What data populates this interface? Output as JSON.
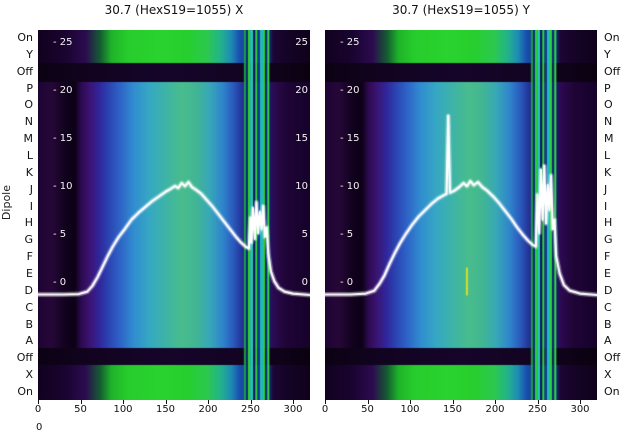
{
  "figure": {
    "background": "#ffffff",
    "left_axis_label": "Dipole",
    "row_labels": [
      "On",
      "Y",
      "Off",
      "P",
      "O",
      "N",
      "M",
      "L",
      "K",
      "J",
      "I",
      "H",
      "G",
      "F",
      "E",
      "D",
      "C",
      "B",
      "A",
      "Off",
      "X",
      "On"
    ],
    "bottom_corner_label": "0"
  },
  "panels": [
    {
      "title": "30.7 (HexS19=1055) X",
      "y_tick_labels": [
        "- 25",
        "- 20",
        "- 15",
        "- 10",
        "- 5",
        "- 0"
      ],
      "right_tick_labels": [
        "25",
        "20",
        "15",
        "10",
        "5",
        "0"
      ],
      "x_tick_labels": [
        "0",
        "50",
        "100",
        "150",
        "200",
        "250",
        "300"
      ]
    },
    {
      "title": "30.7 (HexS19=1055) Y",
      "y_tick_labels": [
        "- 25",
        "- 20",
        "- 15",
        "- 10",
        "- 5",
        "- 0"
      ],
      "right_tick_labels": [],
      "x_tick_labels": [
        "0",
        "50",
        "100",
        "150",
        "200",
        "250",
        "300"
      ]
    }
  ],
  "chart_data": [
    {
      "type": "heatmap",
      "title": "30.7 (HexS19=1055) X",
      "x_range": [
        0,
        320
      ],
      "x_ticks": [
        0,
        50,
        100,
        150,
        200,
        250,
        300
      ],
      "y_ticks": [
        25,
        20,
        15,
        10,
        5,
        0
      ],
      "row_labels": [
        "On",
        "Y",
        "Off",
        "P",
        "O",
        "N",
        "M",
        "L",
        "K",
        "J",
        "I",
        "H",
        "G",
        "F",
        "E",
        "D",
        "C",
        "B",
        "A",
        "Off",
        "X",
        "On"
      ],
      "overlay_line_name": "profile",
      "line": [
        [
          0,
          -1.2
        ],
        [
          30,
          -1.2
        ],
        [
          48,
          -1.15
        ],
        [
          58,
          -0.9
        ],
        [
          64,
          -0.3
        ],
        [
          70,
          0.6
        ],
        [
          76,
          1.7
        ],
        [
          82,
          2.8
        ],
        [
          88,
          3.8
        ],
        [
          95,
          4.8
        ],
        [
          102,
          5.6
        ],
        [
          110,
          6.6
        ],
        [
          118,
          7.3
        ],
        [
          126,
          7.9
        ],
        [
          134,
          8.5
        ],
        [
          142,
          9.0
        ],
        [
          150,
          9.5
        ],
        [
          156,
          9.8
        ],
        [
          161,
          10.1
        ],
        [
          165,
          9.9
        ],
        [
          169,
          10.4
        ],
        [
          173,
          10.1
        ],
        [
          177,
          10.5
        ],
        [
          181,
          10.0
        ],
        [
          186,
          9.7
        ],
        [
          192,
          9.3
        ],
        [
          198,
          8.7
        ],
        [
          205,
          8.0
        ],
        [
          212,
          7.2
        ],
        [
          219,
          6.4
        ],
        [
          226,
          5.6
        ],
        [
          233,
          4.8
        ],
        [
          239,
          4.2
        ],
        [
          244,
          3.8
        ],
        [
          248,
          3.6
        ],
        [
          250,
          6.8
        ],
        [
          251,
          4.2
        ],
        [
          253,
          7.8
        ],
        [
          255,
          4.6
        ],
        [
          257,
          8.4
        ],
        [
          259,
          5.2
        ],
        [
          261,
          7.4
        ],
        [
          263,
          5.6
        ],
        [
          265,
          8.0
        ],
        [
          267,
          4.8
        ],
        [
          269,
          5.8
        ],
        [
          271,
          3.0
        ],
        [
          274,
          1.2
        ],
        [
          278,
          0.2
        ],
        [
          283,
          -0.5
        ],
        [
          290,
          -0.9
        ],
        [
          300,
          -1.1
        ],
        [
          320,
          -1.25
        ]
      ]
    },
    {
      "type": "heatmap",
      "title": "30.7 (HexS19=1055) Y",
      "x_range": [
        0,
        320
      ],
      "x_ticks": [
        0,
        50,
        100,
        150,
        200,
        250,
        300
      ],
      "y_ticks": [
        25,
        20,
        15,
        10,
        5,
        0
      ],
      "row_labels": [
        "On",
        "Y",
        "Off",
        "P",
        "O",
        "N",
        "M",
        "L",
        "K",
        "J",
        "I",
        "H",
        "G",
        "F",
        "E",
        "D",
        "C",
        "B",
        "A",
        "Off",
        "X",
        "On"
      ],
      "overlay_line_name": "profile",
      "marker": {
        "x": 167,
        "v0": -1.3,
        "v1": 1.6,
        "color": "#d6de2a"
      },
      "line": [
        [
          0,
          -1.2
        ],
        [
          30,
          -1.2
        ],
        [
          48,
          -1.1
        ],
        [
          58,
          -0.8
        ],
        [
          64,
          -0.1
        ],
        [
          70,
          0.8
        ],
        [
          76,
          2.0
        ],
        [
          82,
          3.1
        ],
        [
          88,
          4.1
        ],
        [
          95,
          5.1
        ],
        [
          102,
          6.0
        ],
        [
          110,
          6.9
        ],
        [
          118,
          7.6
        ],
        [
          126,
          8.3
        ],
        [
          133,
          8.8
        ],
        [
          139,
          9.1
        ],
        [
          143,
          9.3
        ],
        [
          145,
          17.4
        ],
        [
          147,
          9.4
        ],
        [
          152,
          9.6
        ],
        [
          158,
          10.0
        ],
        [
          163,
          10.4
        ],
        [
          167,
          10.1
        ],
        [
          171,
          10.6
        ],
        [
          175,
          10.2
        ],
        [
          180,
          10.5
        ],
        [
          185,
          10.0
        ],
        [
          191,
          9.6
        ],
        [
          198,
          9.0
        ],
        [
          205,
          8.3
        ],
        [
          212,
          7.5
        ],
        [
          219,
          6.7
        ],
        [
          226,
          5.8
        ],
        [
          233,
          5.0
        ],
        [
          239,
          4.4
        ],
        [
          244,
          4.0
        ],
        [
          248,
          3.8
        ],
        [
          250,
          9.2
        ],
        [
          252,
          5.2
        ],
        [
          254,
          11.8
        ],
        [
          256,
          6.6
        ],
        [
          258,
          12.2
        ],
        [
          260,
          6.2
        ],
        [
          262,
          10.2
        ],
        [
          264,
          7.6
        ],
        [
          266,
          11.2
        ],
        [
          268,
          5.6
        ],
        [
          270,
          6.6
        ],
        [
          272,
          2.8
        ],
        [
          276,
          1.0
        ],
        [
          281,
          -0.2
        ],
        [
          288,
          -0.8
        ],
        [
          300,
          -1.1
        ],
        [
          320,
          -1.25
        ]
      ]
    }
  ],
  "heatmap_style": {
    "line_color": "#ffffff",
    "central_stops": [
      [
        0.0,
        "#1e0433"
      ],
      [
        0.05,
        "#260838"
      ],
      [
        0.1,
        "#12021f"
      ],
      [
        0.135,
        "#0c0116"
      ],
      [
        0.16,
        "#2e0b52"
      ],
      [
        0.19,
        "#3b1472"
      ],
      [
        0.225,
        "#31269b"
      ],
      [
        0.26,
        "#2b44b2"
      ],
      [
        0.3,
        "#2e62c6"
      ],
      [
        0.35,
        "#318cd0"
      ],
      [
        0.41,
        "#36a8c4"
      ],
      [
        0.47,
        "#3eb4a6"
      ],
      [
        0.53,
        "#49bd8c"
      ],
      [
        0.58,
        "#42b694"
      ],
      [
        0.63,
        "#38a8b8"
      ],
      [
        0.68,
        "#2f84cc"
      ],
      [
        0.72,
        "#2a58bc"
      ],
      [
        0.755,
        "#232c90"
      ],
      [
        0.78,
        "#1a1868"
      ],
      [
        0.85,
        "#1a1868"
      ],
      [
        0.865,
        "#2d0a52"
      ],
      [
        0.91,
        "#200538"
      ],
      [
        1.0,
        "#16022a"
      ]
    ],
    "strip_stops": [
      [
        0.0,
        "#12021f"
      ],
      [
        0.1,
        "#1a0430"
      ],
      [
        0.175,
        "#2c0b50"
      ],
      [
        0.23,
        "#155f33"
      ],
      [
        0.27,
        "#1fb32a"
      ],
      [
        0.33,
        "#27cd2c"
      ],
      [
        0.45,
        "#2ad32e"
      ],
      [
        0.55,
        "#27cf2e"
      ],
      [
        0.62,
        "#2cc94e"
      ],
      [
        0.67,
        "#23b48a"
      ],
      [
        0.71,
        "#1e8cb4"
      ],
      [
        0.74,
        "#1a50b0"
      ],
      [
        0.78,
        "#14327e"
      ],
      [
        0.85,
        "#122a70"
      ],
      [
        0.865,
        "#1c0636"
      ],
      [
        0.92,
        "#150426"
      ],
      [
        1.0,
        "#10021c"
      ]
    ],
    "band_stops": [
      [
        0.0,
        "#0c0214"
      ],
      [
        0.2,
        "#120420"
      ],
      [
        0.5,
        "#16052a"
      ],
      [
        0.8,
        "#120420"
      ],
      [
        1.0,
        "#0a0210"
      ]
    ],
    "stripes": [
      {
        "f": 0.757,
        "w": 2,
        "c": "#1c9e46"
      },
      {
        "f": 0.765,
        "w": 2,
        "c": "#0c2a7a"
      },
      {
        "f": 0.772,
        "w": 2,
        "c": "#2fd32f"
      },
      {
        "f": 0.78,
        "w": 3,
        "c": "#27c8b4"
      },
      {
        "f": 0.791,
        "w": 2,
        "c": "#0a1560"
      },
      {
        "f": 0.799,
        "w": 2,
        "c": "#31d938"
      },
      {
        "f": 0.808,
        "w": 2,
        "c": "#123a92"
      },
      {
        "f": 0.816,
        "w": 3,
        "c": "#22b8c8"
      },
      {
        "f": 0.827,
        "w": 2,
        "c": "#2fd32f"
      },
      {
        "f": 0.836,
        "w": 2,
        "c": "#0c2a7a"
      },
      {
        "f": 0.843,
        "w": 2,
        "c": "#35d94a"
      }
    ]
  }
}
